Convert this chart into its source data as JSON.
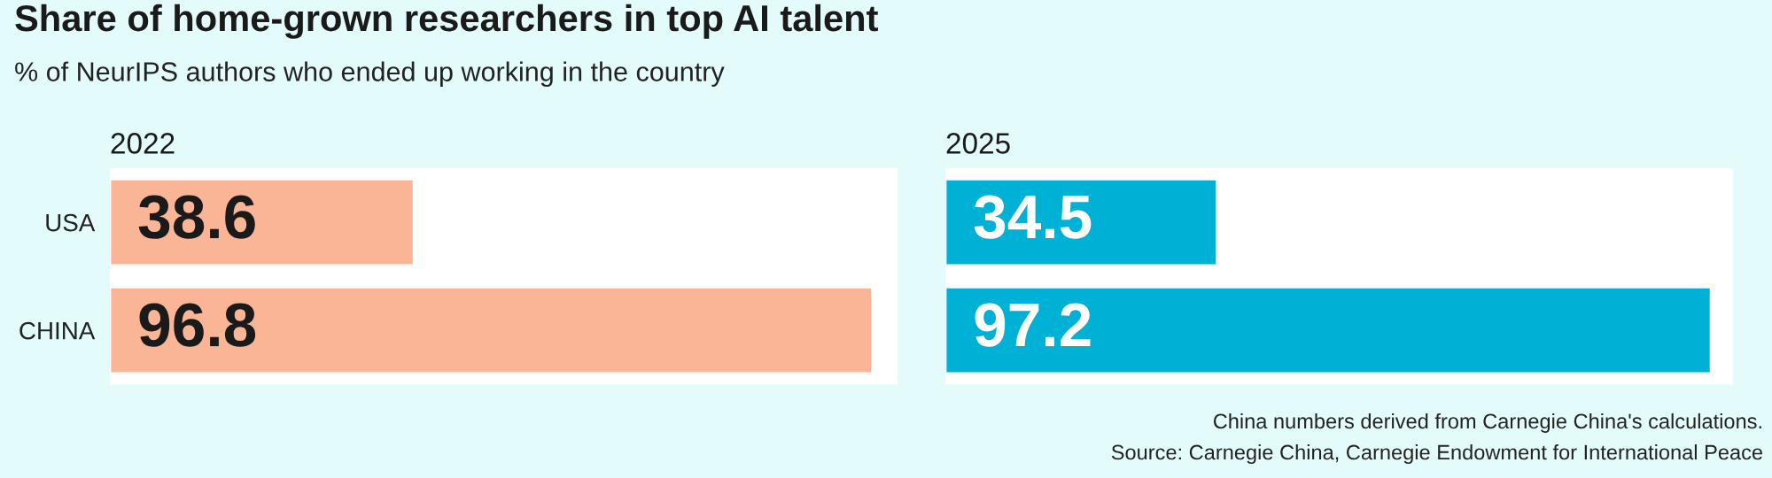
{
  "chart_data": [
    {
      "type": "bar",
      "orientation": "horizontal",
      "title": "Share of home-grown researchers in top AI talent",
      "subtitle": "% of NeurIPS authors who ended up working in the country",
      "categories": [
        "USA",
        "CHINA"
      ],
      "series": [
        {
          "name": "2022",
          "color": "#f9b596",
          "values": [
            38.6,
            96.8
          ]
        }
      ],
      "xlim": [
        0,
        100
      ],
      "tick_labels": "y",
      "data_labels": true,
      "grid": false,
      "legend": false
    },
    {
      "type": "bar",
      "orientation": "horizontal",
      "categories": [
        null,
        null
      ],
      "series": [
        {
          "name": "2025",
          "color": "#00b1d6",
          "values": [
            34.5,
            97.2
          ]
        }
      ],
      "xlim": [
        0,
        100
      ],
      "tick_labels": "y",
      "data_labels": true,
      "grid": false,
      "legend": false,
      "annotations": [
        "China numbers derived from Carnegie China's calculations.",
        "Source: Carnegie China, Carnegie Endowment for International Peace"
      ]
    }
  ]
}
